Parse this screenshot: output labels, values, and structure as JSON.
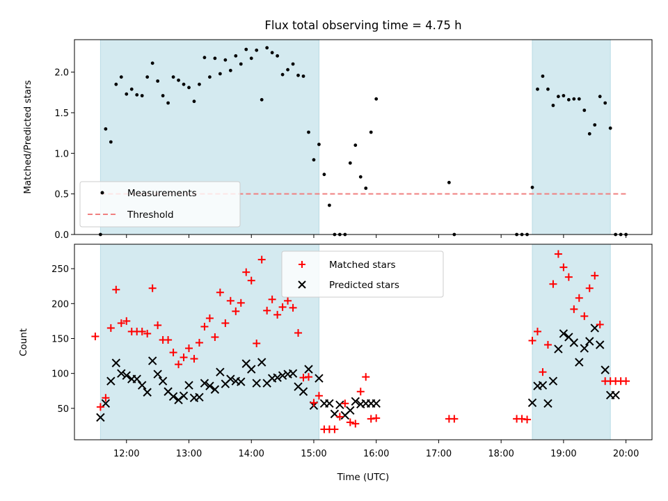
{
  "figure_title": "Flux total observing time = 4.75 h",
  "chart_data": [
    {
      "type": "scatter",
      "ylabel": "Matched/Predicted stars",
      "ylim": [
        0,
        2.4
      ],
      "yticks": [
        0.0,
        0.5,
        1.0,
        1.5,
        2.0
      ],
      "ytick_labels": [
        "0.0",
        "0.5",
        "1.0",
        "1.5",
        "2.0"
      ],
      "shaded_intervals": [
        [
          "11:35",
          "15:05"
        ],
        [
          "18:30",
          "19:45"
        ]
      ],
      "shade_color": "#d4eaf0",
      "legend_position": "lower-left",
      "series": [
        {
          "name": "Measurements",
          "marker": "dot",
          "color": "#000000",
          "x": [
            "11:35",
            "11:40",
            "11:45",
            "11:50",
            "11:55",
            "12:00",
            "12:05",
            "12:10",
            "12:15",
            "12:20",
            "12:25",
            "12:30",
            "12:35",
            "12:40",
            "12:45",
            "12:50",
            "12:55",
            "13:00",
            "13:05",
            "13:10",
            "13:15",
            "13:20",
            "13:25",
            "13:30",
            "13:35",
            "13:40",
            "13:45",
            "13:50",
            "13:55",
            "14:00",
            "14:05",
            "14:10",
            "14:15",
            "14:20",
            "14:25",
            "14:30",
            "14:35",
            "14:40",
            "14:45",
            "14:50",
            "14:55",
            "15:00",
            "15:05",
            "15:10",
            "15:15",
            "15:20",
            "15:25",
            "15:30",
            "15:35",
            "15:40",
            "15:45",
            "15:50",
            "15:55",
            "16:00",
            "17:10",
            "17:15",
            "18:15",
            "18:20",
            "18:25",
            "18:30",
            "18:35",
            "18:40",
            "18:45",
            "18:50",
            "18:55",
            "19:00",
            "19:05",
            "19:10",
            "19:15",
            "19:20",
            "19:25",
            "19:30",
            "19:35",
            "19:40",
            "19:45",
            "19:50",
            "19:55",
            "20:00"
          ],
          "y": [
            0.0,
            1.3,
            1.14,
            1.85,
            1.94,
            1.73,
            1.79,
            1.72,
            1.71,
            1.94,
            2.11,
            1.89,
            1.71,
            1.62,
            1.94,
            1.9,
            1.85,
            1.81,
            1.64,
            1.85,
            2.18,
            1.94,
            2.17,
            1.98,
            2.15,
            2.02,
            2.2,
            2.1,
            2.28,
            2.17,
            2.27,
            1.66,
            2.3,
            2.24,
            2.2,
            1.97,
            2.03,
            2.1,
            1.96,
            1.95,
            1.26,
            0.92,
            1.11,
            0.74,
            0.36,
            0.0,
            0.0,
            0.0,
            0.88,
            1.1,
            0.71,
            0.57,
            1.26,
            1.67,
            0.64,
            0.0,
            0.0,
            0.0,
            0.0,
            0.58,
            1.79,
            1.95,
            1.79,
            1.59,
            1.7,
            1.71,
            1.66,
            1.67,
            1.67,
            1.53,
            1.24,
            1.35,
            1.7,
            1.62,
            1.31,
            0.0,
            0.0,
            0.0
          ]
        },
        {
          "name": "Threshold",
          "style": "dashed",
          "color": "#f08080",
          "x": [
            "11:35",
            "20:00"
          ],
          "y": [
            0.5,
            0.5
          ]
        }
      ]
    },
    {
      "type": "scatter",
      "xlabel": "Time (UTC)",
      "ylabel": "Count",
      "ylim": [
        5,
        285
      ],
      "yticks": [
        50,
        100,
        150,
        200,
        250
      ],
      "ytick_labels": [
        "50",
        "100",
        "150",
        "200",
        "250"
      ],
      "xlim": [
        "11:10",
        "20:25"
      ],
      "xticks": [
        "12:00",
        "13:00",
        "14:00",
        "15:00",
        "16:00",
        "17:00",
        "18:00",
        "19:00",
        "20:00"
      ],
      "shaded_intervals": [
        [
          "11:35",
          "15:05"
        ],
        [
          "18:30",
          "19:45"
        ]
      ],
      "shade_color": "#d4eaf0",
      "legend_position": "upper-center",
      "series": [
        {
          "name": "Matched stars",
          "marker": "plus",
          "color": "#ff0000",
          "x": [
            "11:30",
            "11:35",
            "11:40",
            "11:45",
            "11:50",
            "11:55",
            "12:00",
            "12:05",
            "12:10",
            "12:15",
            "12:20",
            "12:25",
            "12:30",
            "12:35",
            "12:40",
            "12:45",
            "12:50",
            "12:55",
            "13:00",
            "13:05",
            "13:10",
            "13:15",
            "13:20",
            "13:25",
            "13:30",
            "13:35",
            "13:40",
            "13:45",
            "13:50",
            "13:55",
            "14:00",
            "14:05",
            "14:10",
            "14:15",
            "14:20",
            "14:25",
            "14:30",
            "14:35",
            "14:40",
            "14:45",
            "14:50",
            "14:55",
            "15:00",
            "15:05",
            "15:10",
            "15:15",
            "15:20",
            "15:25",
            "15:30",
            "15:35",
            "15:40",
            "15:45",
            "15:50",
            "15:55",
            "16:00",
            "17:10",
            "17:15",
            "18:15",
            "18:20",
            "18:25",
            "18:30",
            "18:35",
            "18:40",
            "18:45",
            "18:50",
            "18:55",
            "19:00",
            "19:05",
            "19:10",
            "19:15",
            "19:20",
            "19:25",
            "19:30",
            "19:35",
            "19:40",
            "19:45",
            "19:50",
            "19:55",
            "20:00"
          ],
          "y": [
            153,
            52,
            65,
            165,
            220,
            172,
            175,
            160,
            160,
            160,
            157,
            222,
            169,
            148,
            148,
            130,
            113,
            123,
            136,
            121,
            144,
            167,
            179,
            152,
            216,
            172,
            204,
            189,
            201,
            245,
            233,
            143,
            263,
            190,
            206,
            184,
            195,
            204,
            194,
            158,
            94,
            95,
            58,
            68,
            20,
            20,
            20,
            38,
            57,
            30,
            28,
            74,
            95,
            35,
            36,
            35,
            35,
            35,
            35,
            34,
            147,
            160,
            102,
            141,
            228,
            271,
            252,
            238,
            192,
            208,
            182,
            222,
            240,
            170,
            89,
            89,
            89,
            89,
            89
          ],
          "x_tail_note": ""
        },
        {
          "name": "Predicted stars",
          "marker": "x",
          "color": "#000000",
          "x": [
            "11:35",
            "11:40",
            "11:45",
            "11:50",
            "11:55",
            "12:00",
            "12:05",
            "12:10",
            "12:15",
            "12:20",
            "12:25",
            "12:30",
            "12:35",
            "12:40",
            "12:45",
            "12:50",
            "12:55",
            "13:00",
            "13:05",
            "13:10",
            "13:15",
            "13:20",
            "13:25",
            "13:30",
            "13:35",
            "13:40",
            "13:45",
            "13:50",
            "13:55",
            "14:00",
            "14:05",
            "14:10",
            "14:15",
            "14:20",
            "14:25",
            "14:30",
            "14:35",
            "14:40",
            "14:45",
            "14:50",
            "14:55",
            "15:00",
            "15:05",
            "15:10",
            "15:15",
            "15:20",
            "15:25",
            "15:30",
            "15:35",
            "15:40",
            "15:45",
            "15:50",
            "15:55",
            "16:00",
            "18:30",
            "18:35",
            "18:40",
            "18:45",
            "18:50",
            "18:55",
            "19:00",
            "19:05",
            "19:10",
            "19:15",
            "19:20",
            "19:25",
            "19:30",
            "19:35",
            "19:40",
            "19:45",
            "19:50"
          ],
          "y": [
            37,
            57,
            89,
            115,
            100,
            97,
            92,
            92,
            83,
            73,
            118,
            99,
            89,
            74,
            67,
            62,
            68,
            83,
            65,
            66,
            86,
            82,
            77,
            102,
            85,
            92,
            89,
            88,
            114,
            106,
            86,
            116,
            86,
            93,
            94,
            97,
            99,
            100,
            81,
            74,
            106,
            54,
            93,
            57,
            57,
            42,
            55,
            40,
            47,
            60,
            56,
            57,
            57,
            57,
            58,
            82,
            83,
            57,
            89,
            135,
            157,
            152,
            144,
            116,
            136,
            146,
            165,
            141,
            105,
            69,
            69
          ]
        }
      ]
    }
  ]
}
